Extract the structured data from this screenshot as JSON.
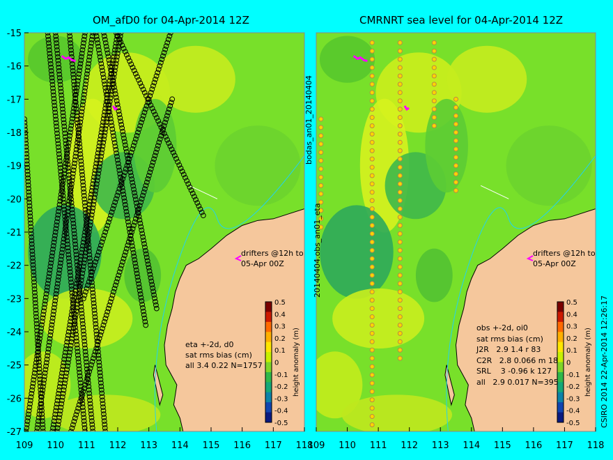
{
  "chart_data": [
    {
      "type": "heatmap",
      "title": "OM_afD0 for 04-Apr-2014 12Z",
      "x_ticks": [
        109,
        110,
        111,
        112,
        113,
        114,
        115,
        116,
        117,
        118
      ],
      "y_ticks": [
        -15,
        -16,
        -17,
        -18,
        -19,
        -20,
        -21,
        -22,
        -23,
        -24,
        -25,
        -26,
        -27
      ],
      "xlim": [
        109,
        118
      ],
      "ylim": [
        -27,
        -15
      ],
      "colorbar": {
        "label": "height anomaly (m)",
        "ticks": [
          "0.5",
          "0.4",
          "0.3",
          "0.2",
          "0.1",
          "0",
          "-0.1",
          "-0.2",
          "-0.3",
          "-0.4",
          "-0.5"
        ]
      },
      "drifter_note": "drifters @12h to\n05-Apr 00Z",
      "stats": "eta +-2d, d0\nsat rms bias (cm)\nall 3.4 0.22 N=1757",
      "satellite_tracks": [
        [
          [
            109.75,
            -15.0
          ],
          [
            110.95,
            -27.0
          ]
        ],
        [
          [
            110.0,
            -15.0
          ],
          [
            111.2,
            -27.0
          ]
        ],
        [
          [
            110.45,
            -15.0
          ],
          [
            111.6,
            -27.0
          ]
        ],
        [
          [
            111.3,
            -15.0
          ],
          [
            112.9,
            -23.8
          ]
        ],
        [
          [
            111.55,
            -15.0
          ],
          [
            113.25,
            -23.3
          ]
        ],
        [
          [
            111.95,
            -15.0
          ],
          [
            114.75,
            -20.5
          ]
        ],
        [
          [
            109.05,
            -27.0
          ],
          [
            110.95,
            -15.0
          ]
        ],
        [
          [
            109.4,
            -27.0
          ],
          [
            111.2,
            -15.0
          ]
        ],
        [
          [
            109.9,
            -27.0
          ],
          [
            112.0,
            -15.0
          ]
        ],
        [
          [
            110.05,
            -27.0
          ],
          [
            112.1,
            -15.0
          ]
        ],
        [
          [
            110.5,
            -27.0
          ],
          [
            113.75,
            -17.0
          ]
        ],
        [
          [
            110.9,
            -23.0
          ],
          [
            113.7,
            -15.0
          ]
        ],
        [
          [
            109.0,
            -17.6
          ],
          [
            109.6,
            -27.0
          ]
        ]
      ]
    },
    {
      "type": "heatmap",
      "title": "CMRNRT sea level  for 04-Apr-2014 12Z",
      "x_ticks": [
        109,
        110,
        111,
        112,
        113,
        114,
        115,
        116,
        117,
        118
      ],
      "xlim": [
        109,
        118
      ],
      "ylim": [
        -27,
        -15
      ],
      "colorbar": {
        "label": "height anomaly (m)",
        "ticks": [
          "0.5",
          "0.4",
          "0.3",
          "0.2",
          "0.1",
          "0",
          "-0.1",
          "-0.2",
          "-0.3",
          "-0.4",
          "-0.5"
        ]
      },
      "drifter_note": "drifters @12h to\n05-Apr 00Z",
      "stats": "obs +-2d, oi0\nsat rms bias (cm)\nJ2R   2.9 1.4 r 83\nC2R   2.8 0.066 m 18\nSRL    3 -0.96 k 127\nall   2.9 0.017 N=395"
    }
  ],
  "side_labels": {
    "left": "20140404.obs_an01_eta",
    "top": "bodas_an01_20140404",
    "right": "CSIRO 2014   22-Apr-2014 12:26:17"
  },
  "colors": {
    "background": "#00ffff",
    "land": "#f5c79c",
    "ocean": "#78e02a",
    "track": "#000000",
    "drifter": "#ff00ff",
    "river": "#22d3ee"
  }
}
